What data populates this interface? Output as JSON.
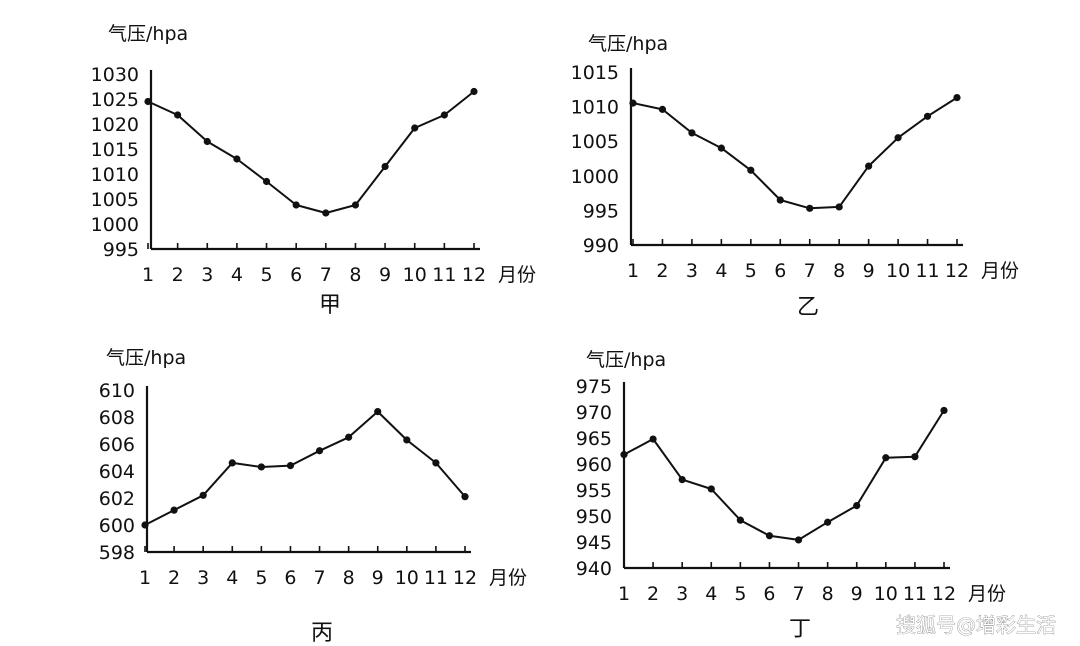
{
  "watermark": "搜狐号@增彩生活",
  "chart_data": [
    {
      "type": "line",
      "caption": "甲",
      "ylabel": "气压/hpa",
      "xlabel": "月份",
      "categories": [
        "1",
        "2",
        "3",
        "4",
        "5",
        "6",
        "7",
        "8",
        "9",
        "10",
        "11",
        "12"
      ],
      "y_ticks": [
        "995",
        "1000",
        "1005",
        "1010",
        "1015",
        "1020",
        "1025",
        "1030"
      ],
      "ylim": [
        995,
        1030
      ],
      "series": [
        {
          "values": [
            1024.5,
            1021.8,
            1016.5,
            1013,
            1008.5,
            1003.8,
            1002.2,
            1003.8,
            1011.5,
            1019.2,
            1021.8,
            1026.5
          ]
        }
      ]
    },
    {
      "type": "line",
      "caption": "乙",
      "ylabel": "气压/hpa",
      "xlabel": "月份",
      "categories": [
        "1",
        "2",
        "3",
        "4",
        "5",
        "6",
        "7",
        "8",
        "9",
        "10",
        "11",
        "12"
      ],
      "y_ticks": [
        "990",
        "995",
        "1000",
        "1005",
        "1010",
        "1015"
      ],
      "ylim": [
        990,
        1015
      ],
      "series": [
        {
          "values": [
            1010.5,
            1009.6,
            1006.2,
            1004,
            1000.8,
            996.5,
            995.3,
            995.5,
            1001.4,
            1005.5,
            1008.6,
            1011.3
          ]
        }
      ]
    },
    {
      "type": "line",
      "caption": "丙",
      "ylabel": "气压/hpa",
      "xlabel": "月份",
      "categories": [
        "1",
        "2",
        "3",
        "4",
        "5",
        "6",
        "7",
        "8",
        "9",
        "10",
        "11",
        "12"
      ],
      "y_ticks": [
        "598",
        "600",
        "602",
        "604",
        "606",
        "608",
        "610"
      ],
      "ylim": [
        598,
        610
      ],
      "series": [
        {
          "values": [
            600,
            601.1,
            602.2,
            604.6,
            604.3,
            604.4,
            605.5,
            606.5,
            608.4,
            606.3,
            604.6,
            602.1
          ]
        }
      ]
    },
    {
      "type": "line",
      "caption": "丁",
      "ylabel": "气压/hpa",
      "xlabel": "月份",
      "categories": [
        "1",
        "2",
        "3",
        "4",
        "5",
        "6",
        "7",
        "8",
        "9",
        "10",
        "11",
        "12"
      ],
      "y_ticks": [
        "940",
        "945",
        "950",
        "955",
        "960",
        "965",
        "970",
        "975"
      ],
      "ylim": [
        940,
        975
      ],
      "series": [
        {
          "values": [
            961.8,
            964.8,
            957,
            955.2,
            949.2,
            946.2,
            945.4,
            948.8,
            952,
            961.2,
            961.4,
            970.3
          ]
        }
      ]
    }
  ]
}
